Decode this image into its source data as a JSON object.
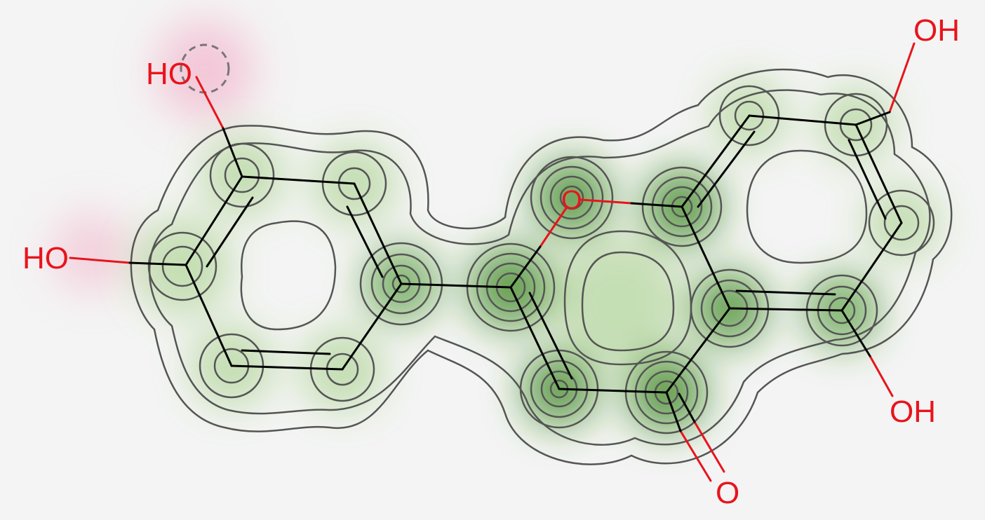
{
  "molecule": {
    "atom_labels": {
      "ho_top": "HO",
      "ho_left": "HO",
      "oh_top_right": "OH",
      "oh_bottom_right": "OH",
      "ring_oxygen": "O",
      "carbonyl_oxygen": "O"
    }
  },
  "colors": {
    "background": "#f4f4f4",
    "bond": "#000000",
    "heteroatom": "#e8141c",
    "positive_contribution": "#3f8f1e",
    "negative_contribution": "#f3c6d6",
    "contour_line": "#555555",
    "highlight_circle": "#777777"
  }
}
